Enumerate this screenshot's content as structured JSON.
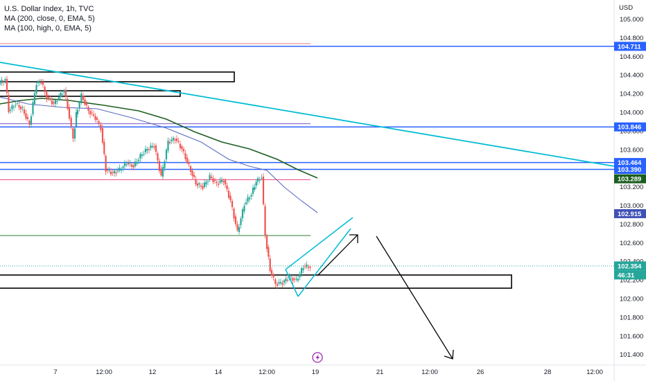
{
  "legend": {
    "symbol": "U.S. Dollar Index, 1h, TVC",
    "ma1": "MA (200, close, 0, EMA, 5)",
    "ma2": "MA (100, high, 0, EMA, 5)"
  },
  "currency": "USD",
  "chart_data": {
    "type": "candlestick",
    "y_axis": {
      "range": [
        101.3,
        105.2
      ],
      "ticks": [
        "105.000",
        "104.800",
        "104.600",
        "104.400",
        "104.200",
        "104.000",
        "103.800",
        "103.600",
        "103.400",
        "103.200",
        "103.000",
        "102.800",
        "102.600",
        "102.400",
        "102.200",
        "102.000",
        "101.800",
        "101.600",
        "101.400"
      ]
    },
    "x_axis": {
      "ticks": [
        "7",
        "12:00",
        "12",
        "14",
        "12:00",
        "19",
        "21",
        "12:00",
        "26",
        "28",
        "12:00"
      ]
    },
    "price_badges": [
      {
        "label": "104.711",
        "value": 104.711,
        "color": "#2962ff"
      },
      {
        "label": "103.846",
        "value": 103.846,
        "color": "#2962ff"
      },
      {
        "label": "103.464",
        "value": 103.464,
        "color": "#2962ff"
      },
      {
        "label": "103.390",
        "value": 103.39,
        "color": "#2962ff"
      },
      {
        "label": "103.289",
        "value": 103.289,
        "color": "#1b5e20"
      },
      {
        "label": "102.915",
        "value": 102.915,
        "color": "#3f51b5"
      },
      {
        "label": "102.354",
        "value": 102.354,
        "color": "#26a69a"
      },
      {
        "label": "46:31",
        "value": 102.31,
        "color": "#26a69a"
      }
    ],
    "colors": {
      "up": "#26a69a",
      "down": "#ef5350",
      "ma200": "#1b5e20",
      "ma100": "#5c6bc0",
      "trend": "#00bcd4",
      "level": "#2962ff"
    }
  },
  "tool": {
    "icon": "lightning-icon"
  }
}
